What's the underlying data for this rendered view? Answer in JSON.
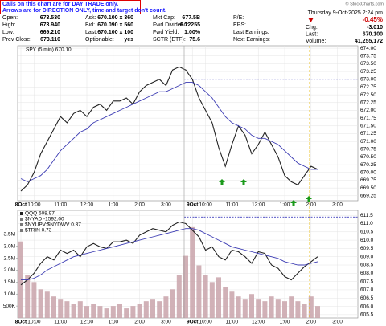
{
  "header": {
    "note": [
      "Calls on this chart are for DAY TRADE only.",
      "Arrows are for DIRECTION ONLY, time and target don't count."
    ],
    "copyright": "© StockCharts.com",
    "rows": [
      [
        "Open:",
        "673.530",
        "Ask:",
        "670.100 x 360",
        "Mkt Cap:",
        "677.5B",
        "P/E:"
      ],
      [
        "High:",
        "673.940",
        "Bid:",
        "670.090 x 560",
        "Fwd Dividend:",
        "6.72255",
        "EPS:"
      ],
      [
        "Low:",
        "669.210",
        "Last:",
        "670.100 x 100",
        "Fwd Yield:",
        "1.00%",
        "Last Earnings:"
      ],
      [
        "Prev Close:",
        "673.110",
        "Optionable:",
        "yes",
        "SCTR (ETF):",
        "75.6",
        "Next Earnings:"
      ]
    ],
    "quote": {
      "date": "Thursday  9-Oct-2025  2:24 pm",
      "change_pct": "-0.45%",
      "rows": [
        [
          "Chg:",
          "-3.010"
        ],
        [
          "Last:",
          "670.100"
        ],
        [
          "Volume:",
          "41,255,172"
        ]
      ]
    }
  },
  "chart_data": [
    {
      "type": "line",
      "title": "SPY (5 min) 670.10",
      "grid": true,
      "categories": [
        "8Oct",
        null,
        "10:00",
        null,
        null,
        null,
        "11:00",
        null,
        null,
        null,
        "12:00",
        null,
        null,
        null,
        "1:00",
        null,
        null,
        null,
        "2:00",
        null,
        null,
        null,
        "3:00",
        null,
        null,
        null,
        "9Oct",
        null,
        "10:00",
        null,
        null,
        null,
        "11:00",
        null,
        null,
        null,
        "12:00",
        null,
        null,
        null,
        "1:00",
        null,
        null,
        null,
        "2:00",
        null,
        null,
        null,
        "3:00",
        null
      ],
      "series": [
        {
          "color": "#222222",
          "values": [
            669.4,
            669.6,
            670.0,
            670.6,
            671.0,
            671.4,
            671.8,
            671.6,
            671.9,
            672.0,
            671.8,
            672.1,
            672.2,
            672.0,
            672.3,
            672.3,
            672.4,
            672.2,
            672.6,
            672.8,
            672.9,
            673.0,
            672.8,
            673.3,
            673.4,
            673.3,
            673.0,
            672.4,
            672.0,
            671.6,
            670.8,
            670.2,
            670.9,
            671.5,
            671.2,
            670.6,
            670.9,
            671.3,
            670.9,
            670.5,
            669.9,
            669.7,
            669.6,
            669.9,
            670.2,
            670.1,
            null,
            null,
            null,
            null
          ]
        },
        {
          "color": "#3b3bb3",
          "values": [
            669.8,
            669.7,
            669.8,
            669.9,
            670.1,
            670.4,
            670.7,
            670.9,
            671.1,
            671.3,
            671.4,
            671.6,
            671.7,
            671.8,
            671.9,
            672.0,
            672.1,
            672.2,
            672.3,
            672.4,
            672.5,
            672.6,
            672.6,
            672.7,
            672.8,
            672.9,
            672.9,
            672.8,
            672.6,
            672.4,
            672.1,
            671.8,
            671.6,
            671.5,
            671.4,
            671.2,
            671.1,
            671.1,
            671.0,
            670.9,
            670.7,
            670.5,
            670.3,
            670.2,
            670.1,
            670.1,
            null,
            null,
            null,
            null
          ]
        }
      ],
      "hline": {
        "value": 673.0,
        "color": "#1b1bb0"
      },
      "ylim": [
        669.09,
        674.08
      ],
      "yticks": [
        {
          "value": 674.0,
          "label": "674.00"
        },
        {
          "value": 673.75,
          "label": "673.75"
        },
        {
          "value": 673.5,
          "label": "673.50"
        },
        {
          "value": 673.25,
          "label": "673.25"
        },
        {
          "value": 673.0,
          "label": "673.00"
        },
        {
          "value": 672.75,
          "label": "672.75"
        },
        {
          "value": 672.5,
          "label": "672.50"
        },
        {
          "value": 672.25,
          "label": "672.25"
        },
        {
          "value": 672.0,
          "label": "672.00"
        },
        {
          "value": 671.75,
          "label": "671.75"
        },
        {
          "value": 671.5,
          "label": "671.50"
        },
        {
          "value": 671.25,
          "label": "671.25"
        },
        {
          "value": 671.0,
          "label": "671.00"
        },
        {
          "value": 670.75,
          "label": "670.75"
        },
        {
          "value": 670.5,
          "label": "670.50"
        },
        {
          "value": 670.25,
          "label": "670.25"
        },
        {
          "value": 670.0,
          "label": "670.00"
        },
        {
          "value": 669.75,
          "label": "669.75"
        },
        {
          "value": 669.5,
          "label": "669.50"
        },
        {
          "value": 669.25,
          "label": "669.25"
        }
      ]
    },
    {
      "type": "line",
      "grid": true,
      "categories": [
        "8Oct",
        null,
        "10:00",
        null,
        null,
        null,
        "11:00",
        null,
        null,
        null,
        "12:00",
        null,
        null,
        null,
        "1:00",
        null,
        null,
        null,
        "2:00",
        null,
        null,
        null,
        "3:00",
        null,
        null,
        null,
        "9Oct",
        null,
        "10:00",
        null,
        null,
        null,
        "11:00",
        null,
        null,
        null,
        "12:00",
        null,
        null,
        null,
        "1:00",
        null,
        null,
        null,
        "2:00",
        null,
        null,
        null,
        "3:00",
        null
      ],
      "legend_notes": [
        "$NYAD -1592.00",
        "$NYUPV:$NYDWV 0.37",
        "$TRIN 0.73"
      ],
      "series": [
        {
          "name": "QQQ 608.97",
          "color": "#222222",
          "values": [
            607.3,
            607.6,
            608.0,
            608.6,
            609.0,
            608.8,
            609.4,
            609.2,
            609.4,
            609.0,
            609.6,
            609.8,
            609.6,
            609.5,
            609.9,
            609.9,
            610.0,
            609.8,
            610.3,
            610.5,
            610.7,
            610.6,
            610.5,
            610.9,
            611.1,
            611.0,
            610.6,
            610.2,
            609.4,
            609.6,
            609.0,
            608.8,
            609.4,
            609.3,
            609.0,
            608.6,
            609.3,
            609.2,
            608.5,
            608.3,
            607.8,
            607.6,
            608.0,
            608.4,
            608.7,
            609.0,
            null,
            null,
            null,
            null
          ]
        },
        {
          "color": "#3b3bb3",
          "values": [
            607.6,
            607.6,
            607.7,
            607.9,
            608.2,
            608.4,
            608.6,
            608.8,
            609.0,
            609.1,
            609.2,
            609.3,
            609.4,
            609.5,
            609.6,
            609.7,
            609.8,
            609.9,
            610.0,
            610.1,
            610.2,
            610.3,
            610.4,
            610.5,
            610.6,
            610.7,
            610.7,
            610.6,
            610.4,
            610.2,
            610.0,
            609.8,
            609.6,
            609.5,
            609.4,
            609.3,
            609.2,
            609.1,
            609.0,
            608.9,
            608.7,
            608.6,
            608.5,
            608.5,
            608.6,
            608.7,
            null,
            null,
            null,
            null
          ]
        },
        {
          "kind": "bar",
          "axis": "y2",
          "color": "#c9a3aa",
          "values": [
            3200000,
            1800000,
            1500000,
            1200000,
            1100000,
            900000,
            800000,
            700000,
            600000,
            700000,
            500000,
            600000,
            500000,
            400000,
            500000,
            600000,
            400000,
            500000,
            600000,
            700000,
            800000,
            700000,
            900000,
            1200000,
            1800000,
            2600000,
            3800000,
            2200000,
            1800000,
            1500000,
            1700000,
            1300000,
            1100000,
            900000,
            800000,
            1000000,
            800000,
            700000,
            900000,
            800000,
            700000,
            900000,
            700000,
            600000,
            900000,
            500000,
            null,
            null,
            null,
            null
          ]
        }
      ],
      "hline": {
        "value": 611.4,
        "color": "#1b1bb0"
      },
      "ylim": [
        605.3,
        611.8
      ],
      "yticks": [
        611.5,
        {
          "value": 611.0,
          "label": "611.0"
        },
        610.5,
        {
          "value": 610.0,
          "label": "610.0"
        },
        609.5,
        {
          "value": 609.0,
          "label": "609.0"
        },
        608.5,
        {
          "value": 608.0,
          "label": "608.0"
        },
        607.5,
        {
          "value": 607.0,
          "label": "607.0"
        },
        606.5,
        {
          "value": 606.0,
          "label": "606.0"
        },
        605.5
      ],
      "y2lim": [
        0,
        4500000
      ],
      "y2ticks": [
        {
          "value": 500000,
          "label": "500K"
        },
        {
          "value": 1000000,
          "label": "1.0M"
        },
        {
          "value": 1500000,
          "label": "1.5M"
        },
        {
          "value": 2000000,
          "label": "2.0M"
        },
        {
          "value": 2500000,
          "label": "2.5M"
        },
        {
          "value": 3000000,
          "label": "3.0M"
        },
        {
          "value": 3500000,
          "label": "3.5M"
        }
      ]
    }
  ]
}
